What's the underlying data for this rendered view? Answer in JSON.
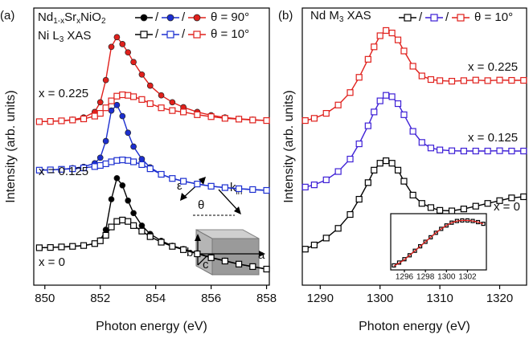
{
  "chart_data": [
    {
      "type": "line",
      "panel_label": "(a)",
      "sample_formula": [
        "Nd",
        "1-x",
        "Sr",
        "x",
        "NiO",
        "2"
      ],
      "edge_label": [
        "Ni L",
        "3",
        " XAS"
      ],
      "x_label": "Photon energy (eV)",
      "y_label": "Intensity (arb. units)",
      "xlim": [
        849.6,
        858.1
      ],
      "xticks": [
        850,
        852,
        854,
        856,
        858
      ],
      "ylim": [
        0,
        10
      ],
      "legend_separator": "/",
      "doping_labels": [
        "x = 0",
        "x = 0.125",
        "x = 0.225"
      ],
      "x": [
        849.8,
        850.2,
        850.6,
        851.0,
        851.4,
        851.8,
        852.0,
        852.2,
        852.4,
        852.6,
        852.8,
        853.0,
        853.2,
        853.5,
        853.8,
        854.2,
        854.6,
        855.0,
        855.5,
        856.0,
        856.5,
        857.0,
        857.5,
        858.0
      ],
      "series": [
        {
          "name": "θ = 90°",
          "marker": "filled-circle",
          "curves": [
            {
              "color": "#000000",
              "values": [
                1.35,
                1.36,
                1.38,
                1.4,
                1.43,
                1.5,
                1.62,
                2.0,
                3.1,
                3.86,
                3.6,
                3.05,
                2.6,
                2.15,
                1.85,
                1.6,
                1.42,
                1.3,
                1.15,
                1.0,
                0.88,
                0.76,
                0.67,
                0.58
              ]
            },
            {
              "color": "#1c2fd0",
              "values": [
                4.15,
                4.16,
                4.18,
                4.22,
                4.27,
                4.4,
                4.6,
                5.2,
                6.3,
                6.5,
                6.1,
                5.5,
                5.0,
                4.55,
                4.25,
                4.0,
                3.85,
                3.75,
                3.65,
                3.57,
                3.52,
                3.48,
                3.45,
                3.42
              ]
            },
            {
              "color": "#e0201c",
              "values": [
                5.9,
                5.91,
                5.93,
                5.97,
                6.05,
                6.25,
                6.6,
                7.4,
                8.6,
                8.95,
                8.7,
                8.4,
                8.05,
                7.6,
                7.2,
                6.85,
                6.6,
                6.42,
                6.25,
                6.13,
                6.05,
                6.0,
                5.97,
                5.94
              ]
            }
          ]
        },
        {
          "name": "θ = 10°",
          "marker": "open-square",
          "curves": [
            {
              "color": "#000000",
              "values": [
                1.35,
                1.36,
                1.38,
                1.4,
                1.43,
                1.5,
                1.6,
                1.8,
                2.1,
                2.3,
                2.35,
                2.3,
                2.15,
                1.95,
                1.75,
                1.55,
                1.4,
                1.28,
                1.13,
                0.99,
                0.87,
                0.76,
                0.67,
                0.58
              ]
            },
            {
              "color": "#1c2fd0",
              "values": [
                4.15,
                4.16,
                4.18,
                4.2,
                4.23,
                4.28,
                4.32,
                4.38,
                4.45,
                4.5,
                4.52,
                4.5,
                4.45,
                4.35,
                4.2,
                4.0,
                3.85,
                3.75,
                3.65,
                3.57,
                3.52,
                3.48,
                3.45,
                3.42
              ]
            },
            {
              "color": "#e0201c",
              "values": [
                5.9,
                5.91,
                5.93,
                5.96,
                6.0,
                6.1,
                6.2,
                6.4,
                6.65,
                6.82,
                6.87,
                6.85,
                6.8,
                6.7,
                6.55,
                6.4,
                6.3,
                6.25,
                6.15,
                6.08,
                6.02,
                5.99,
                5.96,
                5.94
              ]
            }
          ]
        }
      ],
      "diagram": {
        "epsilon": "ε",
        "theta": "θ",
        "k": "k",
        "k_sub": "in",
        "a": "a",
        "b": "b",
        "c": "c"
      }
    },
    {
      "type": "line",
      "panel_label": "(b)",
      "edge_label": [
        "Nd M",
        "3",
        " XAS"
      ],
      "x_label": "Photon energy (eV)",
      "y_label": "Intensity (arb. units)",
      "xlim": [
        1287,
        1324.5
      ],
      "xticks": [
        1290,
        1300,
        1310,
        1320
      ],
      "ylim": [
        0,
        10
      ],
      "legend_separator": "/",
      "doping_labels": [
        "x = 0",
        "x = 0.125",
        "x = 0.225"
      ],
      "x": [
        1287.5,
        1289,
        1291,
        1293,
        1295,
        1296.5,
        1298,
        1299,
        1300,
        1301,
        1302,
        1303,
        1304,
        1305.5,
        1307,
        1308.5,
        1310,
        1312,
        1314,
        1316,
        1318,
        1320,
        1322,
        1324
      ],
      "series": [
        {
          "name": "θ = 10°",
          "marker": "open-square",
          "curves": [
            {
              "color": "#000000",
              "values": [
                1.3,
                1.45,
                1.7,
                2.05,
                2.55,
                3.1,
                3.7,
                4.15,
                4.4,
                4.49,
                4.4,
                4.15,
                3.75,
                3.25,
                2.95,
                2.8,
                2.7,
                2.68,
                2.75,
                2.85,
                2.95,
                3.05,
                3.15,
                3.19
              ]
            },
            {
              "color": "#3d1fd6",
              "values": [
                3.54,
                3.62,
                3.8,
                4.1,
                4.55,
                5.1,
                5.75,
                6.25,
                6.65,
                6.85,
                6.8,
                6.55,
                6.15,
                5.55,
                5.15,
                4.95,
                4.88,
                4.85,
                4.84,
                4.84,
                4.84,
                4.85,
                4.84,
                4.84
              ]
            },
            {
              "color": "#e0201c",
              "values": [
                5.94,
                6.02,
                6.2,
                6.5,
                6.95,
                7.5,
                8.15,
                8.6,
                9.0,
                9.19,
                9.1,
                8.85,
                8.45,
                7.9,
                7.55,
                7.42,
                7.38,
                7.36,
                7.38,
                7.4,
                7.38,
                7.4,
                7.39,
                7.39
              ]
            }
          ]
        }
      ]
    },
    {
      "type": "line",
      "xlim": [
        1294.7,
        1303.8
      ],
      "xticks": [
        1296,
        1298,
        1300,
        1302
      ],
      "ylim": [
        0,
        1
      ],
      "x": [
        1295,
        1295.5,
        1296,
        1296.5,
        1297,
        1297.5,
        1298,
        1298.5,
        1299,
        1299.5,
        1300,
        1300.5,
        1301,
        1301.5,
        1302,
        1302.5,
        1303,
        1303.5
      ],
      "series": [
        {
          "marker": "open-square",
          "curves": [
            {
              "color": "#000000",
              "values": [
                0.08,
                0.13,
                0.19,
                0.26,
                0.34,
                0.42,
                0.5,
                0.58,
                0.66,
                0.73,
                0.79,
                0.84,
                0.87,
                0.88,
                0.88,
                0.87,
                0.85,
                0.82
              ]
            }
          ]
        },
        {
          "marker": "none",
          "curves": [
            {
              "color": "#e0201c",
              "values": [
                0.07,
                0.12,
                0.18,
                0.26,
                0.34,
                0.42,
                0.5,
                0.58,
                0.66,
                0.73,
                0.79,
                0.84,
                0.87,
                0.88,
                0.88,
                0.87,
                0.85,
                0.82
              ]
            }
          ]
        }
      ]
    }
  ]
}
